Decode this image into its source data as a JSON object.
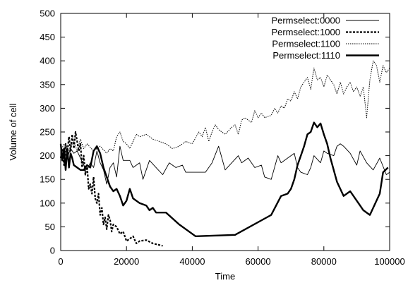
{
  "chart_data": {
    "type": "line",
    "title": "",
    "xlabel": "Time",
    "ylabel": "Volume of cell",
    "xlim": [
      0,
      100000
    ],
    "ylim": [
      0,
      500
    ],
    "x_ticks": [
      0,
      20000,
      40000,
      60000,
      80000,
      100000
    ],
    "x_tick_labels": [
      "0",
      "20000",
      "40000",
      "60000",
      "80000",
      "100000"
    ],
    "y_ticks": [
      0,
      50,
      100,
      150,
      200,
      250,
      300,
      350,
      400,
      450,
      500
    ],
    "y_tick_labels": [
      "0",
      "50",
      "100",
      "150",
      "200",
      "250",
      "300",
      "350",
      "400",
      "450",
      "500"
    ],
    "grid": false,
    "legend_position": "top-right",
    "series": [
      {
        "name": "Permselect:0000",
        "style": "thin-solid",
        "color": "#000000",
        "points": [
          [
            0,
            200
          ],
          [
            1000,
            210
          ],
          [
            2000,
            195
          ],
          [
            3000,
            215
          ],
          [
            4000,
            205
          ],
          [
            5000,
            210
          ],
          [
            6000,
            195
          ],
          [
            7000,
            180
          ],
          [
            8000,
            170
          ],
          [
            9000,
            185
          ],
          [
            10000,
            175
          ],
          [
            11000,
            210
          ],
          [
            12000,
            185
          ],
          [
            13000,
            170
          ],
          [
            14000,
            140
          ],
          [
            15000,
            175
          ],
          [
            16000,
            185
          ],
          [
            17000,
            155
          ],
          [
            18000,
            220
          ],
          [
            19000,
            190
          ],
          [
            21000,
            190
          ],
          [
            22000,
            175
          ],
          [
            24000,
            185
          ],
          [
            25000,
            150
          ],
          [
            27000,
            190
          ],
          [
            29000,
            175
          ],
          [
            31000,
            160
          ],
          [
            33000,
            185
          ],
          [
            35000,
            175
          ],
          [
            37000,
            180
          ],
          [
            38000,
            165
          ],
          [
            42000,
            165
          ],
          [
            44000,
            165
          ],
          [
            46000,
            185
          ],
          [
            48000,
            220
          ],
          [
            50000,
            170
          ],
          [
            52000,
            185
          ],
          [
            54000,
            200
          ],
          [
            55000,
            185
          ],
          [
            57000,
            195
          ],
          [
            59000,
            175
          ],
          [
            61000,
            180
          ],
          [
            62000,
            155
          ],
          [
            64000,
            150
          ],
          [
            66000,
            200
          ],
          [
            67000,
            185
          ],
          [
            69000,
            195
          ],
          [
            71000,
            205
          ],
          [
            72000,
            175
          ],
          [
            73000,
            165
          ],
          [
            75000,
            160
          ],
          [
            76000,
            175
          ],
          [
            77000,
            200
          ],
          [
            79000,
            185
          ],
          [
            80000,
            210
          ],
          [
            81000,
            205
          ],
          [
            83000,
            200
          ],
          [
            84000,
            220
          ],
          [
            85000,
            225
          ],
          [
            86000,
            220
          ],
          [
            88000,
            205
          ],
          [
            90000,
            180
          ],
          [
            91000,
            210
          ],
          [
            93000,
            185
          ],
          [
            95000,
            170
          ],
          [
            97000,
            195
          ],
          [
            99000,
            160
          ],
          [
            100000,
            165
          ]
        ]
      },
      {
        "name": "Permselect:1000",
        "style": "thick-dashed",
        "color": "#000000",
        "points": [
          [
            0,
            195
          ],
          [
            500,
            215
          ],
          [
            1000,
            180
          ],
          [
            1500,
            225
          ],
          [
            2000,
            205
          ],
          [
            2500,
            240
          ],
          [
            3000,
            210
          ],
          [
            3500,
            245
          ],
          [
            4000,
            215
          ],
          [
            4500,
            250
          ],
          [
            5000,
            230
          ],
          [
            5500,
            210
          ],
          [
            6000,
            225
          ],
          [
            6500,
            175
          ],
          [
            7000,
            200
          ],
          [
            7500,
            160
          ],
          [
            8000,
            180
          ],
          [
            8500,
            130
          ],
          [
            9000,
            140
          ],
          [
            9500,
            120
          ],
          [
            10000,
            155
          ],
          [
            10500,
            110
          ],
          [
            11000,
            100
          ],
          [
            11500,
            120
          ],
          [
            12000,
            75
          ],
          [
            12500,
            90
          ],
          [
            13000,
            55
          ],
          [
            13500,
            70
          ],
          [
            14000,
            45
          ],
          [
            14500,
            75
          ],
          [
            15000,
            65
          ],
          [
            15500,
            40
          ],
          [
            16000,
            55
          ],
          [
            17000,
            50
          ],
          [
            18000,
            35
          ],
          [
            19000,
            40
          ],
          [
            20000,
            20
          ],
          [
            21000,
            25
          ],
          [
            22000,
            30
          ],
          [
            23000,
            15
          ],
          [
            24000,
            20
          ],
          [
            26000,
            22
          ],
          [
            28000,
            15
          ],
          [
            31000,
            10
          ]
        ]
      },
      {
        "name": "Permselect:1100",
        "style": "thin-dotted",
        "color": "#000000",
        "points": [
          [
            0,
            210
          ],
          [
            1000,
            225
          ],
          [
            2000,
            200
          ],
          [
            3000,
            220
          ],
          [
            4000,
            230
          ],
          [
            5000,
            210
          ],
          [
            6000,
            235
          ],
          [
            7000,
            215
          ],
          [
            8000,
            225
          ],
          [
            10000,
            210
          ],
          [
            12000,
            220
          ],
          [
            14000,
            205
          ],
          [
            15000,
            215
          ],
          [
            16000,
            210
          ],
          [
            17000,
            240
          ],
          [
            18000,
            250
          ],
          [
            19000,
            230
          ],
          [
            20000,
            225
          ],
          [
            21000,
            215
          ],
          [
            22000,
            230
          ],
          [
            23000,
            245
          ],
          [
            24000,
            240
          ],
          [
            26000,
            245
          ],
          [
            28000,
            235
          ],
          [
            30000,
            230
          ],
          [
            32000,
            225
          ],
          [
            34000,
            215
          ],
          [
            36000,
            220
          ],
          [
            38000,
            230
          ],
          [
            40000,
            225
          ],
          [
            42000,
            250
          ],
          [
            43000,
            240
          ],
          [
            44000,
            260
          ],
          [
            45000,
            230
          ],
          [
            46000,
            250
          ],
          [
            47000,
            265
          ],
          [
            48000,
            255
          ],
          [
            50000,
            245
          ],
          [
            52000,
            260
          ],
          [
            53000,
            265
          ],
          [
            54000,
            245
          ],
          [
            55000,
            275
          ],
          [
            56000,
            280
          ],
          [
            58000,
            270
          ],
          [
            59000,
            295
          ],
          [
            60000,
            280
          ],
          [
            61000,
            290
          ],
          [
            62000,
            280
          ],
          [
            64000,
            285
          ],
          [
            65000,
            300
          ],
          [
            66000,
            290
          ],
          [
            67000,
            305
          ],
          [
            68000,
            300
          ],
          [
            69000,
            320
          ],
          [
            70000,
            315
          ],
          [
            71000,
            335
          ],
          [
            72000,
            320
          ],
          [
            73000,
            345
          ],
          [
            74000,
            355
          ],
          [
            75000,
            365
          ],
          [
            76000,
            340
          ],
          [
            77000,
            385
          ],
          [
            78000,
            360
          ],
          [
            79000,
            365
          ],
          [
            80000,
            345
          ],
          [
            81000,
            370
          ],
          [
            82000,
            360
          ],
          [
            83000,
            350
          ],
          [
            84000,
            330
          ],
          [
            85000,
            355
          ],
          [
            86000,
            330
          ],
          [
            87000,
            345
          ],
          [
            88000,
            355
          ],
          [
            89000,
            335
          ],
          [
            90000,
            345
          ],
          [
            91000,
            325
          ],
          [
            92000,
            345
          ],
          [
            93000,
            280
          ],
          [
            94000,
            360
          ],
          [
            95000,
            400
          ],
          [
            96000,
            390
          ],
          [
            97000,
            355
          ],
          [
            98000,
            390
          ],
          [
            99000,
            375
          ],
          [
            100000,
            385
          ]
        ]
      },
      {
        "name": "Permselect:1110",
        "style": "thick-solid",
        "color": "#000000",
        "points": [
          [
            0,
            225
          ],
          [
            500,
            190
          ],
          [
            1000,
            215
          ],
          [
            1500,
            170
          ],
          [
            2000,
            215
          ],
          [
            2500,
            175
          ],
          [
            3000,
            205
          ],
          [
            3500,
            195
          ],
          [
            4000,
            180
          ],
          [
            5000,
            175
          ],
          [
            6000,
            170
          ],
          [
            7000,
            170
          ],
          [
            8000,
            180
          ],
          [
            9000,
            175
          ],
          [
            10000,
            210
          ],
          [
            11000,
            220
          ],
          [
            12000,
            205
          ],
          [
            13000,
            175
          ],
          [
            14000,
            155
          ],
          [
            15000,
            135
          ],
          [
            16000,
            125
          ],
          [
            17000,
            130
          ],
          [
            18000,
            115
          ],
          [
            19000,
            95
          ],
          [
            20000,
            105
          ],
          [
            21000,
            130
          ],
          [
            22000,
            110
          ],
          [
            24000,
            100
          ],
          [
            26000,
            95
          ],
          [
            27000,
            85
          ],
          [
            28000,
            90
          ],
          [
            29000,
            80
          ],
          [
            30000,
            80
          ],
          [
            32000,
            80
          ],
          [
            36000,
            55
          ],
          [
            41000,
            30
          ],
          [
            53000,
            33
          ],
          [
            64000,
            75
          ],
          [
            67000,
            115
          ],
          [
            69000,
            120
          ],
          [
            70000,
            130
          ],
          [
            71000,
            150
          ],
          [
            72000,
            180
          ],
          [
            73000,
            200
          ],
          [
            74000,
            220
          ],
          [
            75000,
            245
          ],
          [
            76000,
            250
          ],
          [
            77000,
            270
          ],
          [
            78000,
            260
          ],
          [
            79000,
            268
          ],
          [
            80000,
            245
          ],
          [
            81000,
            225
          ],
          [
            82000,
            195
          ],
          [
            84000,
            145
          ],
          [
            86000,
            115
          ],
          [
            88000,
            125
          ],
          [
            90000,
            105
          ],
          [
            92000,
            85
          ],
          [
            94000,
            75
          ],
          [
            97000,
            120
          ],
          [
            98000,
            165
          ],
          [
            99500,
            175
          ]
        ]
      }
    ]
  }
}
